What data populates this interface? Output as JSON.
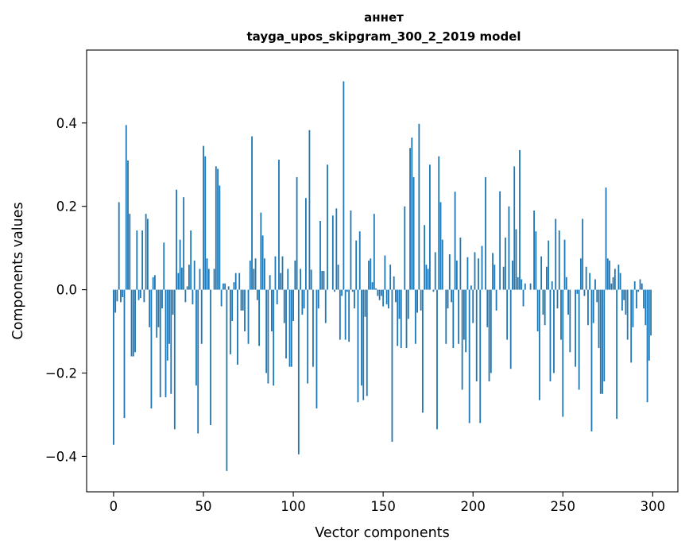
{
  "chart_data": {
    "type": "bar",
    "title_lines": [
      "аннет",
      "tayga_upos_skipgram_300_2_2019 model"
    ],
    "xlabel": "Vector components",
    "ylabel": "Components values",
    "xlim": [
      -15,
      314
    ],
    "ylim": [
      -0.485,
      0.575
    ],
    "xticks": [
      0,
      50,
      100,
      150,
      200,
      250,
      300
    ],
    "xtick_labels": [
      "0",
      "50",
      "100",
      "150",
      "200",
      "250",
      "300"
    ],
    "yticks": [
      -0.4,
      -0.2,
      0.0,
      0.2,
      0.4
    ],
    "ytick_labels": [
      "−0.4",
      "−0.2",
      "0.0",
      "0.2",
      "0.4"
    ],
    "bar_color": "#1f77b4",
    "values": [
      -0.372,
      -0.055,
      -0.028,
      0.21,
      -0.03,
      -0.018,
      -0.308,
      0.395,
      0.31,
      0.182,
      -0.16,
      -0.16,
      -0.15,
      0.142,
      -0.025,
      -0.02,
      0.142,
      -0.03,
      0.182,
      0.17,
      -0.09,
      -0.285,
      0.03,
      0.035,
      -0.115,
      -0.09,
      -0.258,
      -0.045,
      0.113,
      -0.258,
      -0.17,
      -0.13,
      -0.25,
      -0.06,
      -0.335,
      0.24,
      0.04,
      0.12,
      0.053,
      0.222,
      -0.03,
      0.008,
      0.06,
      0.142,
      -0.035,
      0.07,
      -0.23,
      -0.345,
      0.05,
      -0.13,
      0.345,
      0.32,
      0.075,
      0.05,
      -0.325,
      0.0,
      0.05,
      0.296,
      0.29,
      0.25,
      -0.04,
      0.015,
      0.015,
      -0.435,
      0.008,
      -0.155,
      -0.075,
      0.018,
      0.04,
      -0.18,
      0.04,
      -0.05,
      -0.05,
      -0.1,
      0.0,
      -0.13,
      0.07,
      0.368,
      0.05,
      0.075,
      -0.025,
      -0.135,
      0.185,
      0.13,
      0.075,
      -0.2,
      -0.225,
      0.035,
      -0.1,
      -0.23,
      0.08,
      -0.035,
      0.312,
      0.04,
      0.08,
      -0.08,
      -0.165,
      0.05,
      -0.185,
      -0.185,
      -0.075,
      0.07,
      0.27,
      -0.395,
      0.05,
      -0.06,
      -0.045,
      0.22,
      -0.225,
      0.383,
      0.048,
      -0.185,
      0.0,
      -0.285,
      -0.045,
      0.165,
      0.045,
      0.045,
      -0.08,
      0.3,
      0.0,
      0.0,
      0.178,
      -0.005,
      0.195,
      0.06,
      -0.12,
      -0.015,
      0.5,
      -0.12,
      -0.005,
      -0.125,
      0.19,
      -0.005,
      -0.045,
      0.118,
      -0.27,
      0.14,
      -0.23,
      -0.265,
      -0.065,
      -0.255,
      0.07,
      0.075,
      0.018,
      0.182,
      0.003,
      -0.015,
      -0.025,
      -0.015,
      -0.04,
      0.082,
      -0.035,
      -0.045,
      0.06,
      -0.365,
      0.032,
      -0.03,
      -0.135,
      -0.07,
      -0.14,
      0.0,
      0.2,
      -0.14,
      -0.07,
      0.34,
      0.365,
      0.27,
      -0.13,
      -0.055,
      0.398,
      -0.05,
      -0.295,
      0.155,
      0.06,
      0.05,
      0.3,
      0.0,
      -0.005,
      0.09,
      -0.335,
      0.32,
      0.21,
      0.12,
      0.0,
      -0.13,
      -0.045,
      0.085,
      -0.03,
      -0.14,
      0.235,
      0.07,
      -0.13,
      0.125,
      -0.24,
      -0.12,
      -0.15,
      0.078,
      -0.32,
      0.01,
      -0.08,
      0.09,
      -0.22,
      0.075,
      -0.32,
      0.105,
      0.0,
      0.27,
      -0.09,
      -0.22,
      -0.2,
      0.088,
      0.06,
      -0.05,
      0.0,
      0.236,
      0.0,
      0.055,
      0.125,
      -0.12,
      0.2,
      -0.19,
      0.07,
      0.296,
      0.145,
      0.03,
      0.335,
      0.025,
      -0.04,
      0.015,
      0.0,
      0.0,
      0.015,
      0.0,
      0.19,
      0.14,
      -0.1,
      -0.265,
      0.08,
      -0.06,
      -0.085,
      0.055,
      0.118,
      -0.22,
      0.02,
      -0.2,
      0.17,
      -0.045,
      0.142,
      -0.12,
      -0.305,
      0.12,
      0.03,
      -0.06,
      -0.15,
      0.0,
      0.0,
      -0.185,
      -0.01,
      -0.24,
      0.075,
      0.17,
      -0.015,
      0.055,
      -0.085,
      0.04,
      -0.34,
      -0.08,
      0.025,
      -0.03,
      -0.14,
      -0.25,
      -0.25,
      -0.22,
      0.245,
      0.075,
      0.07,
      0.015,
      0.03,
      0.05,
      -0.31,
      0.06,
      0.04,
      -0.05,
      -0.025,
      -0.06,
      -0.12,
      0.0,
      -0.175,
      -0.09,
      0.02,
      -0.045,
      -0.005,
      0.025,
      0.015,
      -0.045,
      -0.085,
      -0.27,
      -0.17,
      -0.11
    ]
  }
}
